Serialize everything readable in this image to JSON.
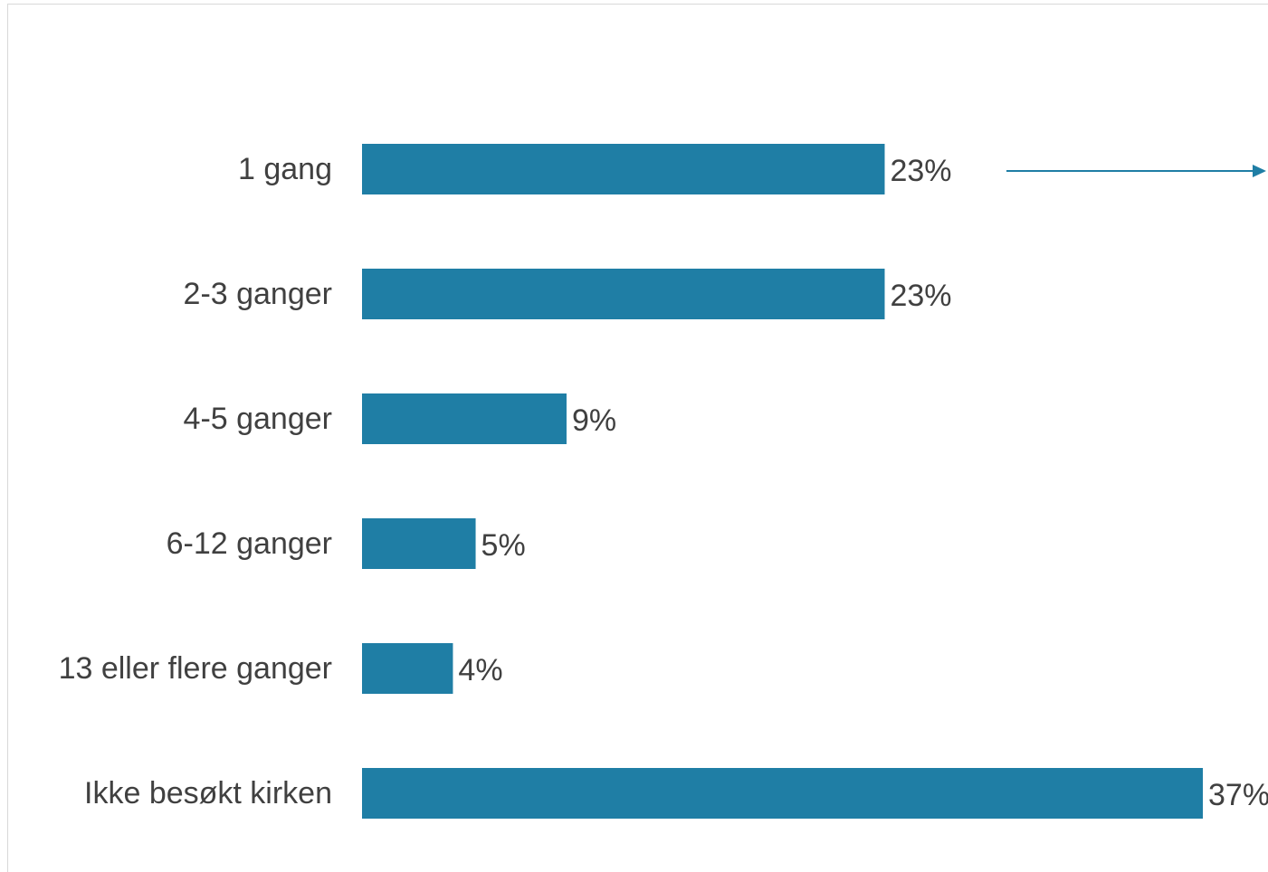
{
  "chart_data": {
    "type": "bar",
    "orientation": "horizontal",
    "categories": [
      "1 gang",
      "2-3 ganger",
      "4-5 ganger",
      "6-12 ganger",
      "13 eller flere ganger",
      "Ikke besøkt kirken"
    ],
    "values": [
      23,
      23,
      9,
      5,
      4,
      37
    ],
    "value_labels": [
      "23%",
      "23%",
      "9%",
      "5%",
      "4%",
      "37%"
    ],
    "unit": "%",
    "xlim": [
      0,
      37
    ],
    "grid": false,
    "bar_color": "#1f7ea5",
    "annotation_arrow": {
      "from_category": "1 gang",
      "direction": "right",
      "color": "#1f7ea5"
    }
  }
}
